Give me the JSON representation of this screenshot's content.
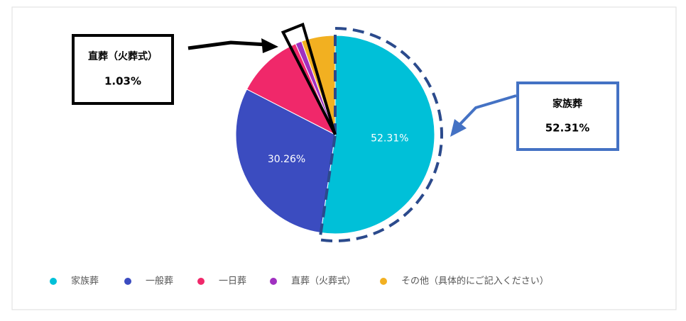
{
  "chart_data": {
    "type": "pie",
    "categories": [
      "家族葬",
      "一般葬",
      "一日葬",
      "直葬（火葬式）",
      "その他（具体的にご記入ください）"
    ],
    "values": [
      52.31,
      30.26,
      10.9,
      1.03,
      5.5
    ],
    "value_labels": [
      "52.31%",
      "30.26%",
      null,
      null,
      null
    ],
    "colors": [
      "#00c0d8",
      "#3b4cc0",
      "#f0286a",
      "#a030c0",
      "#f2b021"
    ],
    "legend": "bottom",
    "annotations": [
      {
        "title": "直葬（火葬式）",
        "value": "1.03%"
      },
      {
        "title": "家族葬",
        "value": "52.31%"
      }
    ]
  }
}
